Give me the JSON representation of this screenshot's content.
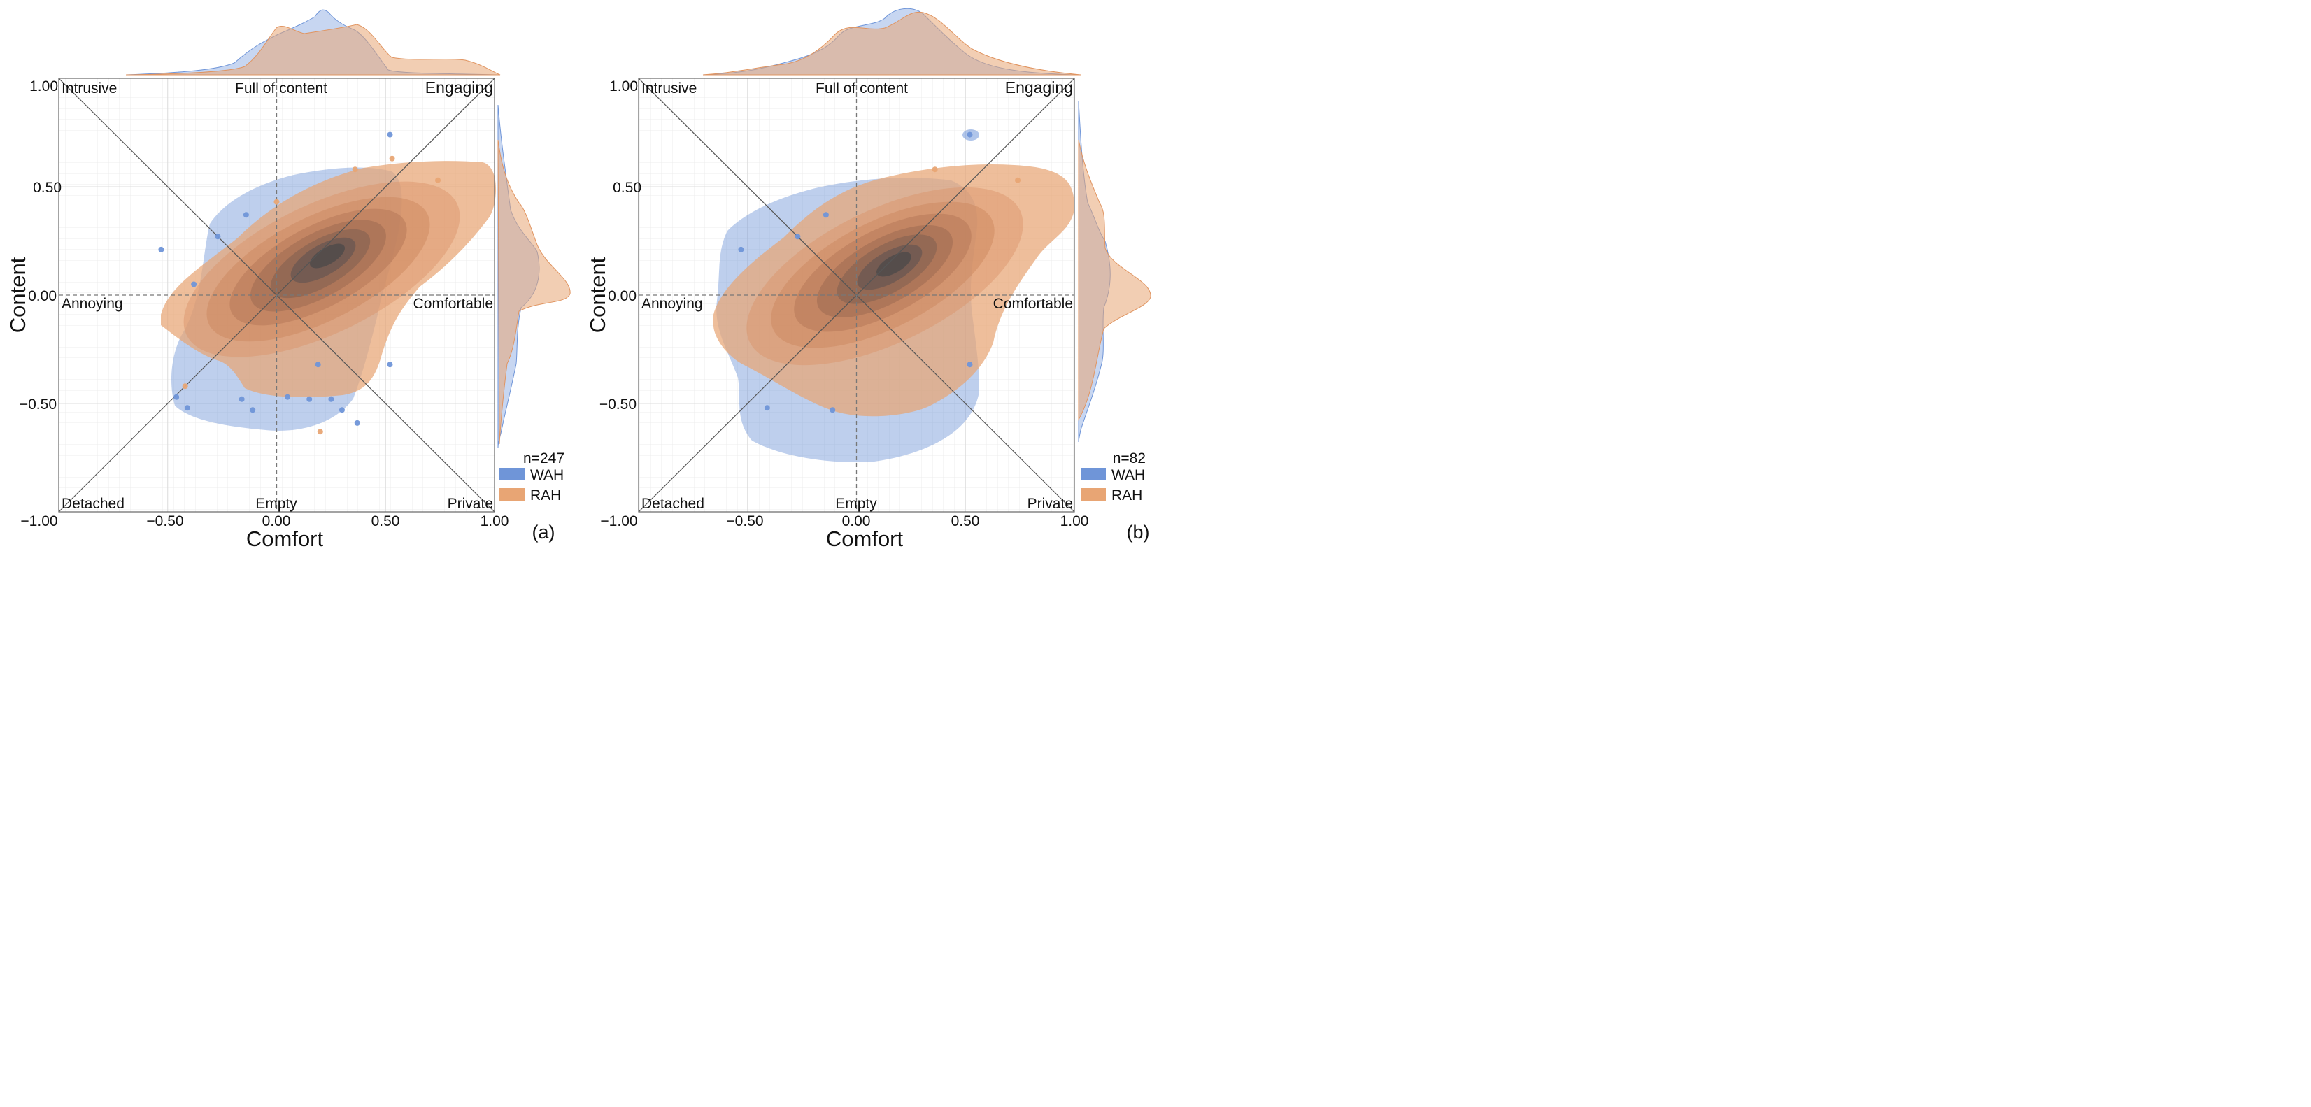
{
  "chart_data": [
    {
      "type": "kde-scatter",
      "panel_label": "(a)",
      "xlabel": "Comfort",
      "ylabel": "Content",
      "xlim": [
        -1.0,
        1.0
      ],
      "ylim": [
        -1.0,
        1.0
      ],
      "x_ticks": [
        "−1.00",
        "−0.50",
        "0.00",
        "0.50",
        "1.00"
      ],
      "y_ticks": [
        "1.00",
        "0.50",
        "0.00",
        "−0.50"
      ],
      "quadrant_labels": {
        "top_left": "Intrusive",
        "top_center": "Full of content",
        "top_right": "Engaging",
        "mid_left": "Annoying",
        "mid_right": "Comfortable",
        "bottom_left": "Detached",
        "bottom_center": "Empty",
        "bottom_right": "Private"
      },
      "n_label": "n=247",
      "legend": [
        {
          "name": "WAH",
          "color": "#6f95d8"
        },
        {
          "name": "RAH",
          "color": "#e8a574"
        }
      ],
      "series": [
        {
          "name": "WAH",
          "points": [
            [
              0.52,
              0.74
            ],
            [
              -0.53,
              0.21
            ],
            [
              -0.27,
              0.27
            ],
            [
              -0.38,
              0.05
            ],
            [
              -0.14,
              0.37
            ],
            [
              -0.41,
              -0.52
            ],
            [
              -0.46,
              -0.47
            ],
            [
              0.52,
              -0.32
            ],
            [
              0.05,
              -0.47
            ],
            [
              0.15,
              -0.48
            ],
            [
              0.25,
              -0.48
            ],
            [
              -0.16,
              -0.48
            ],
            [
              -0.11,
              -0.53
            ],
            [
              0.37,
              -0.59
            ],
            [
              0.3,
              -0.53
            ],
            [
              0.19,
              -0.32
            ]
          ]
        },
        {
          "name": "RAH",
          "points": [
            [
              0.53,
              0.63
            ],
            [
              0.2,
              -0.63
            ],
            [
              -0.42,
              -0.42
            ],
            [
              0.74,
              0.53
            ],
            [
              0.0,
              0.43
            ],
            [
              0.36,
              0.58
            ]
          ]
        }
      ]
    },
    {
      "type": "kde-scatter",
      "panel_label": "(b)",
      "xlabel": "Comfort",
      "ylabel": "Content",
      "xlim": [
        -1.0,
        1.0
      ],
      "ylim": [
        -1.0,
        1.0
      ],
      "x_ticks": [
        "−1.00",
        "−0.50",
        "0.00",
        "0.50",
        "1.00"
      ],
      "y_ticks": [
        "1.00",
        "0.50",
        "0.00",
        "−0.50"
      ],
      "quadrant_labels": {
        "top_left": "Intrusive",
        "top_center": "Full of content",
        "top_right": "Engaging",
        "mid_left": "Annoying",
        "mid_right": "Comfortable",
        "bottom_left": "Detached",
        "bottom_center": "Empty",
        "bottom_right": "Private"
      },
      "n_label": "n=82",
      "legend": [
        {
          "name": "WAH",
          "color": "#6f95d8"
        },
        {
          "name": "RAH",
          "color": "#e8a574"
        }
      ],
      "series": [
        {
          "name": "WAH",
          "points": [
            [
              0.52,
              0.74
            ],
            [
              -0.53,
              0.21
            ],
            [
              -0.14,
              0.37
            ],
            [
              -0.41,
              -0.52
            ],
            [
              -0.11,
              -0.53
            ],
            [
              0.52,
              -0.32
            ],
            [
              -0.27,
              0.27
            ]
          ]
        },
        {
          "name": "RAH",
          "points": [
            [
              0.74,
              0.53
            ],
            [
              0.36,
              0.58
            ]
          ]
        }
      ]
    }
  ]
}
